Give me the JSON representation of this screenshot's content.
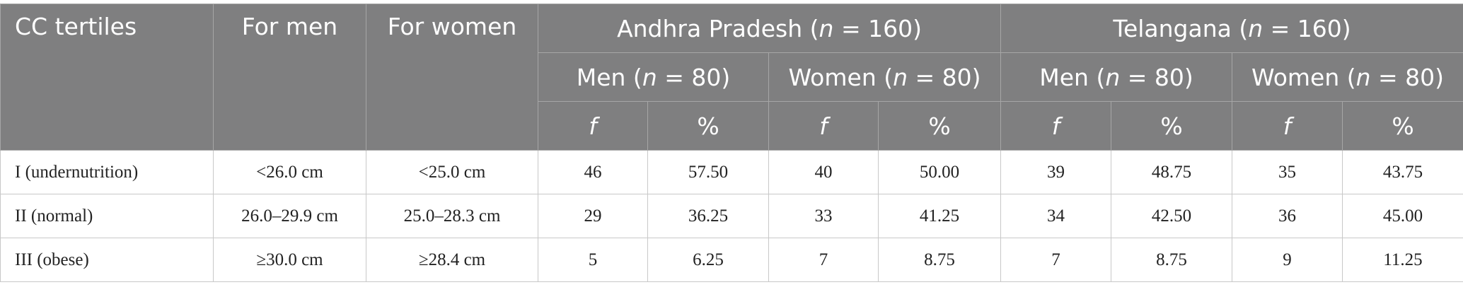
{
  "header": {
    "row1": {
      "cc": "CC tertiles",
      "men": "For men",
      "women": "For women",
      "ap": [
        "Andhra Pradesh (",
        "n",
        " = 160)"
      ],
      "tg": [
        "Telangana (",
        "n",
        " = 160)"
      ]
    },
    "row2": [
      [
        "Men (",
        "n",
        " = 80)"
      ],
      [
        "Women (",
        "n",
        " = 80)"
      ],
      [
        "Men (",
        "n",
        " = 80)"
      ],
      [
        "Women (",
        "n",
        " = 80)"
      ]
    ],
    "row3": [
      "f",
      "%",
      "f",
      "%",
      "f",
      "%",
      "f",
      "%"
    ]
  },
  "table": {
    "rows": [
      [
        "I (undernutrition)",
        "<26.0 cm",
        "<25.0 cm",
        "46",
        "57.50",
        "40",
        "50.00",
        "39",
        "48.75",
        "35",
        "43.75"
      ],
      [
        "II (normal)",
        "26.0–29.9 cm",
        "25.0–28.3 cm",
        "29",
        "36.25",
        "33",
        "41.25",
        "34",
        "42.50",
        "36",
        "45.00"
      ],
      [
        "III (obese)",
        "≥30.0 cm",
        "≥28.4 cm",
        "5",
        "6.25",
        "7",
        "8.75",
        "7",
        "8.75",
        "9",
        "11.25"
      ]
    ]
  }
}
